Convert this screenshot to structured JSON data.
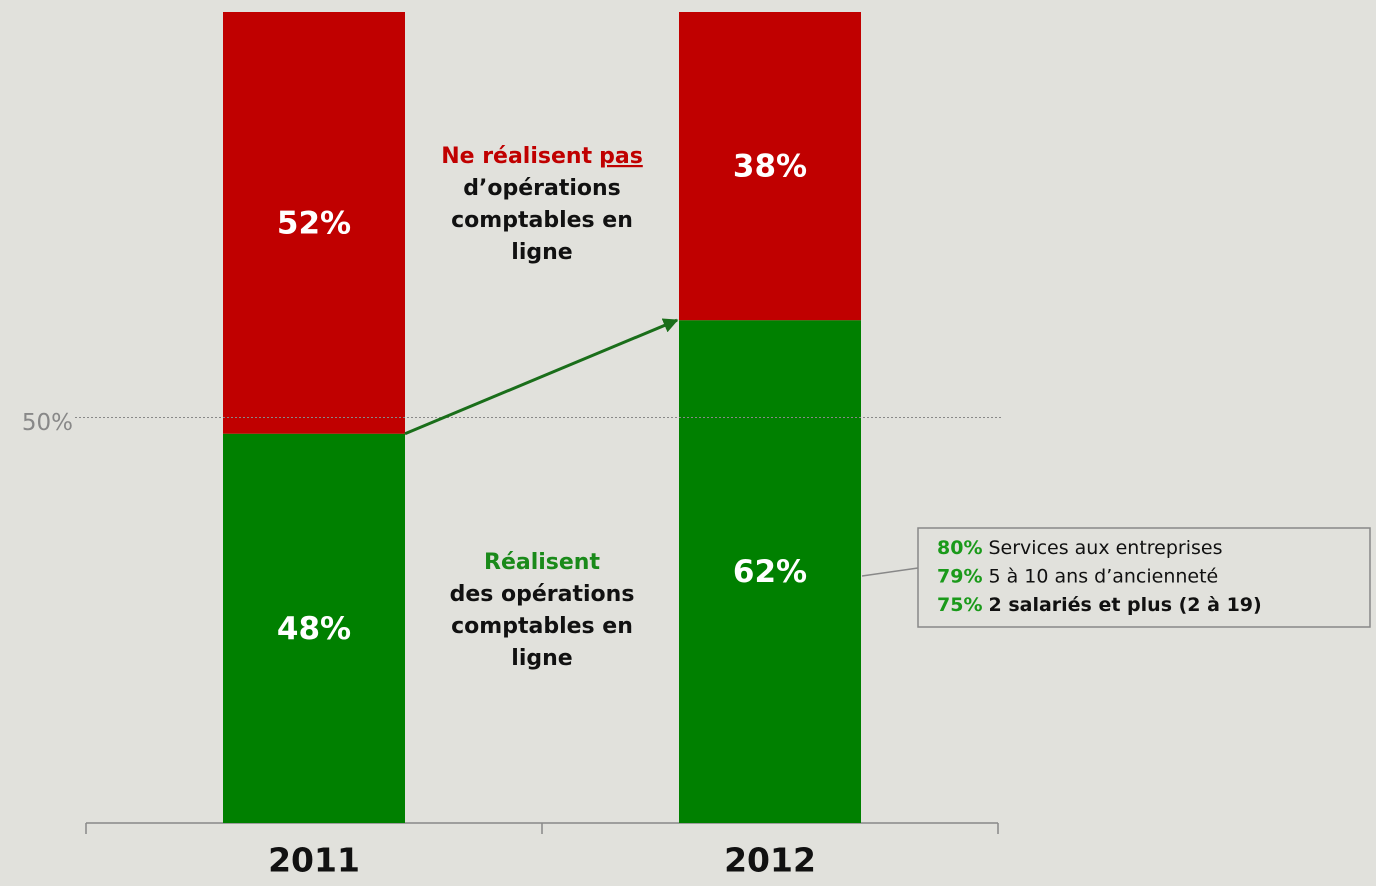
{
  "chart_data": {
    "type": "stacked_bar",
    "categories": [
      "2011",
      "2012"
    ],
    "series": [
      {
        "color": "#008000",
        "values": [
          48,
          62
        ],
        "value_labels": [
          "48%",
          "62%"
        ]
      },
      {
        "color": "#c00000",
        "values": [
          52,
          38
        ],
        "value_labels": [
          "52%",
          "38%"
        ]
      }
    ],
    "ylim": [
      0,
      100
    ],
    "yticks": [
      {
        "value": 50,
        "label": "50%"
      }
    ],
    "notes": [
      {
        "lead": "Réalisent",
        "lines": [
          "des opérations",
          "comptables en",
          "ligne"
        ],
        "color": "#1a8a1a"
      },
      {
        "lead": "Ne réalisent",
        "emphasis": "pas",
        "lines": [
          "d’opérations",
          "comptables en",
          "ligne"
        ],
        "color": "#c00000"
      }
    ],
    "callout": [
      {
        "value": 80,
        "label": "80%",
        "text": "Services aux entreprises",
        "bold": false
      },
      {
        "value": 79,
        "label": "79%",
        "text": "5 à 10 ans d’ancienneté",
        "bold": false
      },
      {
        "value": 75,
        "label": "75%",
        "text": "2 salariés et plus (2 à 19)",
        "bold": true
      }
    ]
  }
}
